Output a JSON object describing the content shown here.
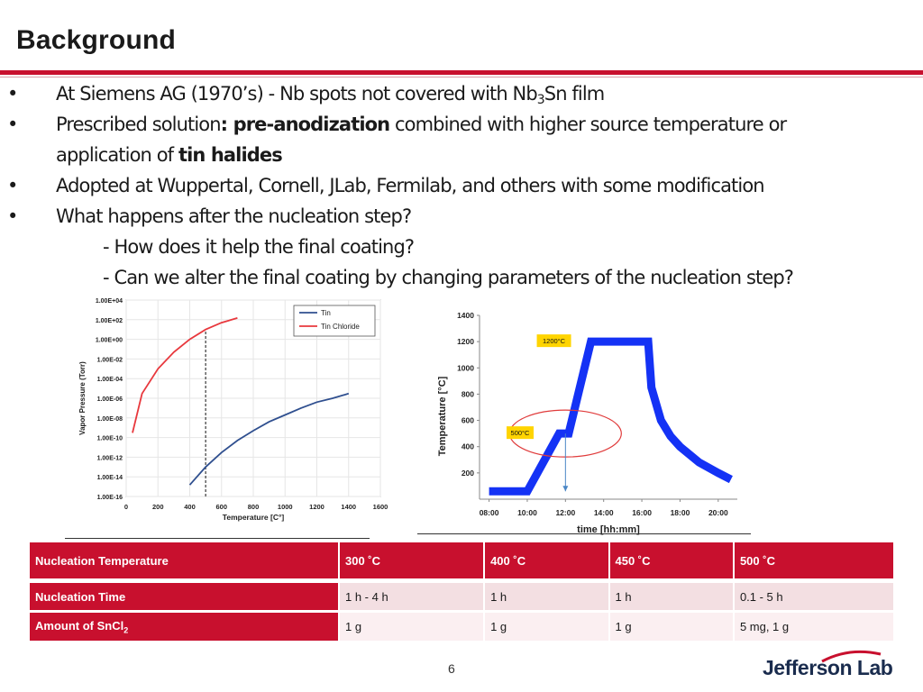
{
  "slide": {
    "title": "Background",
    "page_number": "6",
    "logo_text": "Jefferson Lab"
  },
  "bullets": {
    "b1_pre": "At Siemens AG  (1970’s) - Nb spots not covered with Nb",
    "b1_sub": "3",
    "b1_post": "Sn film",
    "b2_pre": "Prescribed solution",
    "b2_bold": ": pre-anodization",
    "b2_post": " combined with higher source temperature or",
    "b2_line2_pre": "application of  ",
    "b2_line2_bold": "tin halides",
    "b3": "Adopted at Wuppertal, Cornell, JLab, Fermilab, and others with some modification",
    "b4": "What happens after the nucleation step?",
    "b4_sub1": "- How does it help the final coating?",
    "b4_sub2": "- Can we alter the final coating by changing parameters of the nucleation step?"
  },
  "chart_data": [
    {
      "type": "line",
      "xlabel": "Temperature [C°]",
      "ylabel": "Vapor Pressure (Torr)",
      "y_scale": "log",
      "xlim": [
        0,
        1600
      ],
      "x_ticks": [
        "0",
        "200",
        "400",
        "600",
        "800",
        "1000",
        "1200",
        "1400",
        "1600"
      ],
      "y_ticks": [
        "1.00E+04",
        "1.00E+02",
        "1.00E+00",
        "1.00E-02",
        "1.00E-04",
        "1.00E-06",
        "1.00E-08",
        "1.00E-10",
        "1.00E-12",
        "1.00E-14",
        "1.00E-16"
      ],
      "legend_position": "top-right",
      "vline_x": 500,
      "series": [
        {
          "name": "Tin",
          "color": "#2f4f8f",
          "points": [
            [
              400,
              1.5e-15
            ],
            [
              500,
              1e-13
            ],
            [
              600,
              3e-12
            ],
            [
              700,
              5e-11
            ],
            [
              800,
              5e-10
            ],
            [
              900,
              4e-09
            ],
            [
              1000,
              2e-08
            ],
            [
              1100,
              1e-07
            ],
            [
              1200,
              4e-07
            ],
            [
              1300,
              1e-06
            ],
            [
              1400,
              3e-06
            ]
          ]
        },
        {
          "name": "Tin Chloride",
          "color": "#e8383d",
          "points": [
            [
              40,
              3e-10
            ],
            [
              100,
              3e-06
            ],
            [
              200,
              0.001
            ],
            [
              300,
              0.05
            ],
            [
              400,
              1
            ],
            [
              500,
              10
            ],
            [
              600,
              50
            ],
            [
              700,
              150
            ]
          ]
        }
      ]
    },
    {
      "type": "line",
      "xlabel": "time [hh:mm]",
      "ylabel": "Temperature [°C]",
      "ylim": [
        0,
        1400
      ],
      "y_ticks": [
        "200",
        "400",
        "600",
        "800",
        "1000",
        "1200",
        "1400"
      ],
      "x_ticks": [
        "08:00",
        "10:00",
        "12:00",
        "14:00",
        "16:00",
        "18:00",
        "20:00"
      ],
      "annotations": [
        "1200°C",
        "500°C"
      ],
      "series": [
        {
          "name": "",
          "color": "#1432f5",
          "points": [
            [
              "08:00",
              60
            ],
            [
              "10:00",
              60
            ],
            [
              "11:40",
              500
            ],
            [
              "12:00",
              500
            ],
            [
              "12:10",
              500
            ],
            [
              "13:20",
              1200
            ],
            [
              "14:00",
              1200
            ],
            [
              "16:00",
              1200
            ],
            [
              "16:20",
              1200
            ],
            [
              "16:30",
              850
            ],
            [
              "17:00",
              600
            ],
            [
              "17:30",
              480
            ],
            [
              "18:00",
              400
            ],
            [
              "19:00",
              280
            ],
            [
              "20:00",
              200
            ],
            [
              "20:40",
              150
            ]
          ]
        }
      ]
    }
  ],
  "table": {
    "headers": [
      "Nucleation Temperature",
      "300 ˚C",
      "400 ˚C",
      "450 ˚C",
      "500 ˚C"
    ],
    "row1": [
      "Nucleation Time",
      "1 h - 4 h",
      "1 h",
      "1 h",
      "0.1 - 5 h"
    ],
    "row2_label_pre": "Amount of SnCl",
    "row2_label_sub": "2",
    "row2": [
      "1 g",
      "1 g",
      "1 g",
      "5 mg, 1 g"
    ]
  },
  "colors": {
    "accent": "#c8102e",
    "tin_line": "#2f4f8f",
    "tin_chloride_line": "#e8383d",
    "temp_profile": "#1432f5"
  }
}
